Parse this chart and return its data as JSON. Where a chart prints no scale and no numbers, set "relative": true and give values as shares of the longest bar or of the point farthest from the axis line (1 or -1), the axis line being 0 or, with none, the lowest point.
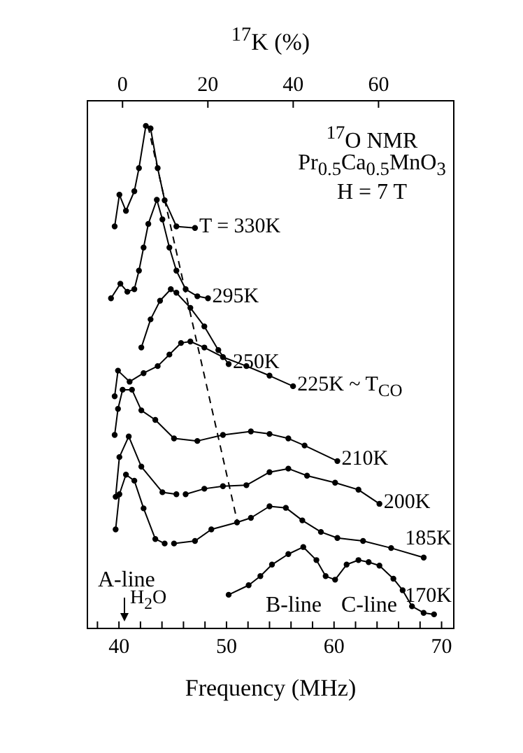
{
  "chart_data": {
    "type": "line",
    "relative": true,
    "xlabel": "Frequency (MHz)",
    "x2label": "$^{17}$K (%)",
    "xlim": [
      37,
      71.2
    ],
    "xticks": [
      {
        "value": 38,
        "label": null
      },
      40,
      {
        "value": 42,
        "label": null
      },
      {
        "value": 44,
        "label": null
      },
      {
        "value": 46,
        "label": null
      },
      {
        "value": 48,
        "label": null
      },
      50,
      {
        "value": 52,
        "label": null
      },
      {
        "value": 54,
        "label": null
      },
      {
        "value": 56,
        "label": null
      },
      {
        "value": 58,
        "label": null
      },
      60,
      {
        "value": 62,
        "label": null
      },
      {
        "value": 64,
        "label": null
      },
      {
        "value": 66,
        "label": null
      },
      {
        "value": 68,
        "label": null
      },
      70
    ],
    "x2lim": [
      -8.4,
      77.8
    ],
    "x2ticks": [
      0,
      20,
      40,
      60
    ],
    "marker": "circle",
    "line_style": "solid",
    "series": [
      {
        "name": "T = 330K",
        "color": "#000000",
        "x": [
          39.6,
          40.04,
          40.65,
          41.43,
          41.86,
          42.5,
          42.94,
          43.6,
          44.25,
          45.34,
          47.07
        ],
        "values": [
          0.8,
          0.863,
          0.831,
          0.87,
          0.916,
          1.0,
          0.995,
          0.916,
          0.852,
          0.8,
          0.797
        ]
      },
      {
        "name": "295K",
        "color": "#000000",
        "x": [
          39.26,
          40.13,
          40.78,
          41.43,
          41.86,
          42.29,
          42.73,
          43.52,
          44.04,
          44.69,
          45.34,
          46.2,
          47.29,
          48.28
        ],
        "values": [
          0.657,
          0.686,
          0.67,
          0.675,
          0.712,
          0.758,
          0.805,
          0.853,
          0.814,
          0.758,
          0.712,
          0.675,
          0.661,
          0.657
        ]
      },
      {
        "name": "250K",
        "color": "#000000",
        "x": [
          42.08,
          42.94,
          43.82,
          44.82,
          45.34,
          46.64,
          47.94,
          49.24,
          50.2
        ],
        "values": [
          0.559,
          0.615,
          0.652,
          0.675,
          0.668,
          0.638,
          0.601,
          0.554,
          0.526
        ]
      },
      {
        "name": "225K ~ T$_{CO}$",
        "color": "#000000",
        "x": [
          39.6,
          39.91,
          40.99,
          42.29,
          43.6,
          44.69,
          45.77,
          46.64,
          47.94,
          49.67,
          51.85,
          54.0,
          56.19
        ],
        "values": [
          0.462,
          0.513,
          0.491,
          0.508,
          0.522,
          0.545,
          0.568,
          0.571,
          0.559,
          0.54,
          0.522,
          0.503,
          0.482
        ]
      },
      {
        "name": "210K",
        "color": "#000000",
        "x": [
          39.6,
          39.91,
          40.34,
          41.21,
          42.08,
          43.38,
          45.12,
          47.29,
          49.67,
          52.27,
          54.0,
          55.75,
          57.26,
          60.31
        ],
        "values": [
          0.385,
          0.437,
          0.475,
          0.475,
          0.434,
          0.415,
          0.378,
          0.373,
          0.385,
          0.392,
          0.387,
          0.378,
          0.364,
          0.333
        ]
      },
      {
        "name": "200K",
        "color": "#000000",
        "x": [
          39.69,
          40.04,
          40.91,
          42.08,
          44.04,
          45.34,
          45.8,
          46.2,
          47.94,
          49.67,
          51.85,
          54.0,
          55.75,
          57.49,
          60.1,
          62.27,
          64.22
        ],
        "values": [
          0.262,
          0.341,
          0.382,
          0.322,
          0.271,
          0.267,
          null,
          0.267,
          0.278,
          0.283,
          0.285,
          0.311,
          0.318,
          0.304,
          0.29,
          0.276,
          0.248
        ]
      },
      {
        "name": "185K",
        "color": "#000000",
        "x": [
          39.69,
          40.04,
          40.65,
          41.43,
          42.29,
          43.38,
          44.25,
          44.7,
          45.12,
          47.07,
          48.59,
          50.98,
          52.27,
          54.0,
          55.52,
          57.05,
          58.78,
          60.31,
          62.7,
          65.31,
          68.34
        ],
        "values": [
          0.197,
          0.267,
          0.306,
          0.294,
          0.239,
          0.178,
          0.169,
          null,
          0.169,
          0.174,
          0.197,
          0.211,
          0.22,
          0.243,
          0.24,
          0.215,
          0.192,
          0.18,
          0.174,
          0.16,
          0.141
        ]
      },
      {
        "name": "170K",
        "color": "#000000",
        "x": [
          50.2,
          52.06,
          53.15,
          54.23,
          55.75,
          57.14,
          58.36,
          59.22,
          60.1,
          61.17,
          62.27,
          63.22,
          64.22,
          65.52,
          66.38,
          67.25,
          68.33,
          69.3
        ],
        "values": [
          0.067,
          0.086,
          0.104,
          0.127,
          0.148,
          0.162,
          0.136,
          0.104,
          0.097,
          0.127,
          0.136,
          0.132,
          0.125,
          0.099,
          0.076,
          0.044,
          0.031,
          0.028
        ]
      },
      {
        "color": "#000000",
        "line_style": "dashed",
        "marker": "none",
        "x": [
          42.7,
          50.98
        ],
        "values": [
          1.0,
          0.215
        ]
      }
    ],
    "annotations": [
      "$^{17}$O NMR",
      "Pr$_{0.5}$Ca$_{0.5}$MnO$_{3}$",
      "H = 7 T",
      "A-line",
      "B-line",
      "C-line",
      "H$_{2}$O"
    ]
  }
}
